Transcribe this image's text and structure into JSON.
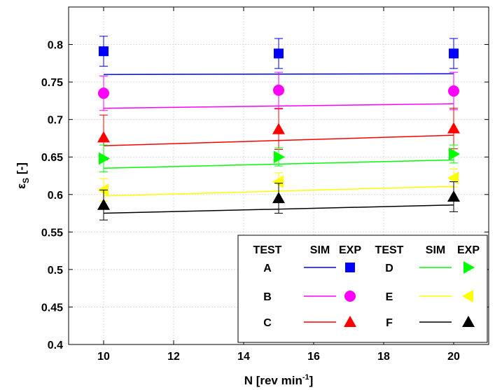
{
  "chart_data": {
    "type": "scatter",
    "x_label_base": "N [rev min",
    "x_label_sup": "-1",
    "x_label_end": "]",
    "y_label_main": "ε",
    "y_label_sub": "S",
    "y_label_rest": " [-]",
    "xlim": [
      9,
      21
    ],
    "ylim": [
      0.4,
      0.85
    ],
    "xticks": [
      10,
      12,
      14,
      16,
      18,
      20
    ],
    "yticks": [
      0.4,
      0.45,
      0.5,
      0.55,
      0.6,
      0.65,
      0.7,
      0.75,
      0.8
    ],
    "grid": true,
    "series": [
      {
        "test": "A",
        "color": "#0000ff",
        "marker": "square",
        "sim": {
          "x": [
            10,
            20
          ],
          "y": [
            0.76,
            0.761
          ]
        },
        "exp": {
          "x": [
            10,
            15,
            20
          ],
          "y": [
            0.791,
            0.788,
            0.788
          ],
          "err": [
            0.02,
            0.02,
            0.02
          ]
        }
      },
      {
        "test": "B",
        "color": "#ff00ff",
        "marker": "circle",
        "sim": {
          "x": [
            10,
            20
          ],
          "y": [
            0.715,
            0.721
          ]
        },
        "exp": {
          "x": [
            10,
            15,
            20
          ],
          "y": [
            0.735,
            0.739,
            0.738
          ],
          "err": [
            0.023,
            0.024,
            0.025
          ]
        }
      },
      {
        "test": "C",
        "color": "#ff0000",
        "marker": "triangle-up",
        "sim": {
          "x": [
            10,
            20
          ],
          "y": [
            0.665,
            0.679
          ]
        },
        "exp": {
          "x": [
            10,
            15,
            20
          ],
          "y": [
            0.676,
            0.687,
            0.688
          ],
          "err": [
            0.03,
            0.027,
            0.027
          ]
        }
      },
      {
        "test": "D",
        "color": "#00ff00",
        "marker": "triangle-right",
        "sim": {
          "x": [
            10,
            20
          ],
          "y": [
            0.635,
            0.646
          ]
        },
        "exp": {
          "x": [
            10,
            15,
            20
          ],
          "y": [
            0.648,
            0.65,
            0.654
          ],
          "err": [
            0.018,
            0.012,
            0.012
          ]
        }
      },
      {
        "test": "E",
        "color": "#ffff00",
        "marker": "triangle-left",
        "sim": {
          "x": [
            10,
            20
          ],
          "y": [
            0.598,
            0.611
          ]
        },
        "exp": {
          "x": [
            10,
            15,
            20
          ],
          "y": [
            0.606,
            0.617,
            0.622
          ],
          "err": [
            0.015,
            0.012,
            0.012
          ]
        }
      },
      {
        "test": "F",
        "color": "#000000",
        "marker": "triangle-up",
        "sim": {
          "x": [
            10,
            20
          ],
          "y": [
            0.575,
            0.586
          ]
        },
        "exp": {
          "x": [
            10,
            15,
            20
          ],
          "y": [
            0.586,
            0.595,
            0.597
          ],
          "err": [
            0.02,
            0.02,
            0.02
          ]
        }
      }
    ],
    "legend": {
      "placement": "bottom-right",
      "headers": [
        "TEST",
        "SIM",
        "EXP",
        "TEST",
        "SIM",
        "EXP"
      ]
    }
  }
}
